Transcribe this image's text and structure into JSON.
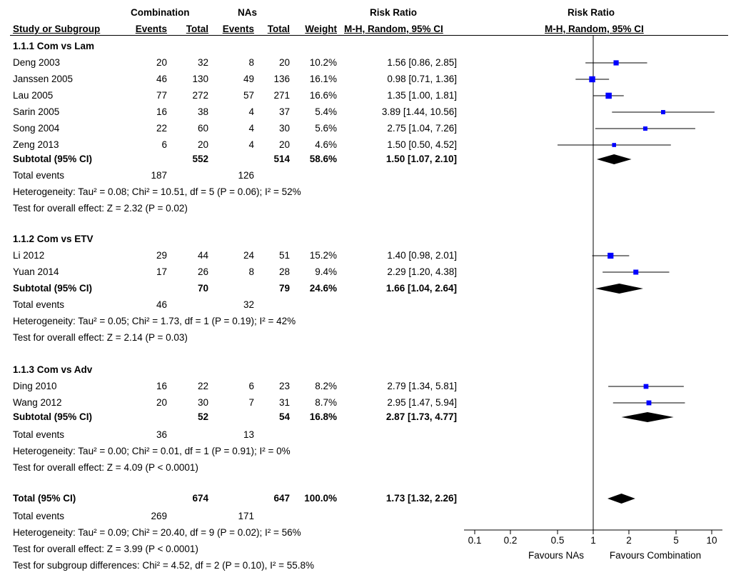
{
  "header": {
    "group1": "Combination",
    "group2": "NAs",
    "rr_title": "Risk Ratio",
    "plot_title": "Risk Ratio",
    "col_study": "Study or Subgroup",
    "col_events1": "Events",
    "col_total1": "Total",
    "col_events2": "Events",
    "col_total2": "Total",
    "col_weight": "Weight",
    "col_rr": "M-H, Random, 95% CI",
    "plot_subtitle": "M-H, Random, 95% CI"
  },
  "subgroups": [
    {
      "title": "1.1.1 Com vs Lam",
      "studies": [
        {
          "name": "Deng 2003",
          "e1": "20",
          "t1": "32",
          "e2": "8",
          "t2": "20",
          "weight": "10.2%",
          "ci": "1.56 [0.86, 2.85]",
          "rr": 1.56,
          "lo": 0.86,
          "hi": 2.85,
          "w": 10.2
        },
        {
          "name": "Janssen 2005",
          "e1": "46",
          "t1": "130",
          "e2": "49",
          "t2": "136",
          "weight": "16.1%",
          "ci": "0.98 [0.71, 1.36]",
          "rr": 0.98,
          "lo": 0.71,
          "hi": 1.36,
          "w": 16.1
        },
        {
          "name": "Lau 2005",
          "e1": "77",
          "t1": "272",
          "e2": "57",
          "t2": "271",
          "weight": "16.6%",
          "ci": "1.35 [1.00, 1.81]",
          "rr": 1.35,
          "lo": 1.0,
          "hi": 1.81,
          "w": 16.6
        },
        {
          "name": "Sarin 2005",
          "e1": "16",
          "t1": "38",
          "e2": "4",
          "t2": "37",
          "weight": "5.4%",
          "ci": "3.89 [1.44, 10.56]",
          "rr": 3.89,
          "lo": 1.44,
          "hi": 10.56,
          "w": 5.4
        },
        {
          "name": "Song 2004",
          "e1": "22",
          "t1": "60",
          "e2": "4",
          "t2": "30",
          "weight": "5.6%",
          "ci": "2.75 [1.04, 7.26]",
          "rr": 2.75,
          "lo": 1.04,
          "hi": 7.26,
          "w": 5.6
        },
        {
          "name": "Zeng 2013",
          "e1": "6",
          "t1": "20",
          "e2": "4",
          "t2": "20",
          "weight": "4.6%",
          "ci": "1.50 [0.50, 4.52]",
          "rr": 1.5,
          "lo": 0.5,
          "hi": 4.52,
          "w": 4.6
        }
      ],
      "subtotal": {
        "label": "Subtotal (95% CI)",
        "t1": "552",
        "t2": "514",
        "weight": "58.6%",
        "ci": "1.50 [1.07, 2.10]",
        "rr": 1.5,
        "lo": 1.07,
        "hi": 2.1
      },
      "events_label": "Total events",
      "events1": "187",
      "events2": "126",
      "heterogeneity": "Heterogeneity: Tau² = 0.08; Chi² = 10.51, df = 5 (P = 0.06); I² = 52%",
      "overall": "Test for overall effect: Z = 2.32 (P = 0.02)"
    },
    {
      "title": "1.1.2 Com vs ETV",
      "studies": [
        {
          "name": "Li 2012",
          "e1": "29",
          "t1": "44",
          "e2": "24",
          "t2": "51",
          "weight": "15.2%",
          "ci": "1.40 [0.98, 2.01]",
          "rr": 1.4,
          "lo": 0.98,
          "hi": 2.01,
          "w": 15.2
        },
        {
          "name": "Yuan 2014",
          "e1": "17",
          "t1": "26",
          "e2": "8",
          "t2": "28",
          "weight": "9.4%",
          "ci": "2.29 [1.20, 4.38]",
          "rr": 2.29,
          "lo": 1.2,
          "hi": 4.38,
          "w": 9.4
        }
      ],
      "subtotal": {
        "label": "Subtotal (95% CI)",
        "t1": "70",
        "t2": "79",
        "weight": "24.6%",
        "ci": "1.66 [1.04, 2.64]",
        "rr": 1.66,
        "lo": 1.04,
        "hi": 2.64
      },
      "events_label": "Total events",
      "events1": "46",
      "events2": "32",
      "heterogeneity": "Heterogeneity: Tau² = 0.05; Chi² = 1.73, df = 1 (P = 0.19); I² = 42%",
      "overall": "Test for overall effect: Z = 2.14 (P = 0.03)"
    },
    {
      "title": "1.1.3 Com vs Adv",
      "studies": [
        {
          "name": "Ding 2010",
          "e1": "16",
          "t1": "22",
          "e2": "6",
          "t2": "23",
          "weight": "8.2%",
          "ci": "2.79 [1.34, 5.81]",
          "rr": 2.79,
          "lo": 1.34,
          "hi": 5.81,
          "w": 8.2
        },
        {
          "name": "Wang 2012",
          "e1": "20",
          "t1": "30",
          "e2": "7",
          "t2": "31",
          "weight": "8.7%",
          "ci": "2.95 [1.47, 5.94]",
          "rr": 2.95,
          "lo": 1.47,
          "hi": 5.94,
          "w": 8.7
        }
      ],
      "subtotal": {
        "label": "Subtotal (95% CI)",
        "t1": "52",
        "t2": "54",
        "weight": "16.8%",
        "ci": "2.87 [1.73, 4.77]",
        "rr": 2.87,
        "lo": 1.73,
        "hi": 4.77
      },
      "events_label": "Total events",
      "events1": "36",
      "events2": "13",
      "heterogeneity": "Heterogeneity: Tau² = 0.00; Chi² = 0.01, df = 1 (P = 0.91); I² = 0%",
      "overall": "Test for overall effect: Z = 4.09 (P < 0.0001)"
    }
  ],
  "total": {
    "label": "Total (95% CI)",
    "t1": "674",
    "t2": "647",
    "weight": "100.0%",
    "ci": "1.73 [1.32, 2.26]",
    "rr": 1.73,
    "lo": 1.32,
    "hi": 2.26,
    "events_label": "Total events",
    "events1": "269",
    "events2": "171",
    "heterogeneity": "Heterogeneity: Tau² = 0.09; Chi² = 20.40, df = 9 (P = 0.02); I² = 56%",
    "overall": "Test for overall effect: Z = 3.99 (P < 0.0001)",
    "subgroup_test": "Test for subgroup differences: Chi² = 4.52, df = 2 (P = 0.10), I² = 55.8%"
  },
  "chart_data": {
    "type": "forest",
    "scale": "log",
    "xlim": [
      0.1,
      10
    ],
    "ticks": [
      {
        "value": 0.1,
        "label": "0.1"
      },
      {
        "value": 0.2,
        "label": "0.2"
      },
      {
        "value": 0.5,
        "label": "0.5"
      },
      {
        "value": 1,
        "label": "1"
      },
      {
        "value": 2,
        "label": "2"
      },
      {
        "value": 5,
        "label": "5"
      },
      {
        "value": 10,
        "label": "10"
      }
    ],
    "reference": 1,
    "favours_left": "Favours NAs",
    "favours_right": "Favours Combination",
    "square_color": "#0000ff"
  }
}
